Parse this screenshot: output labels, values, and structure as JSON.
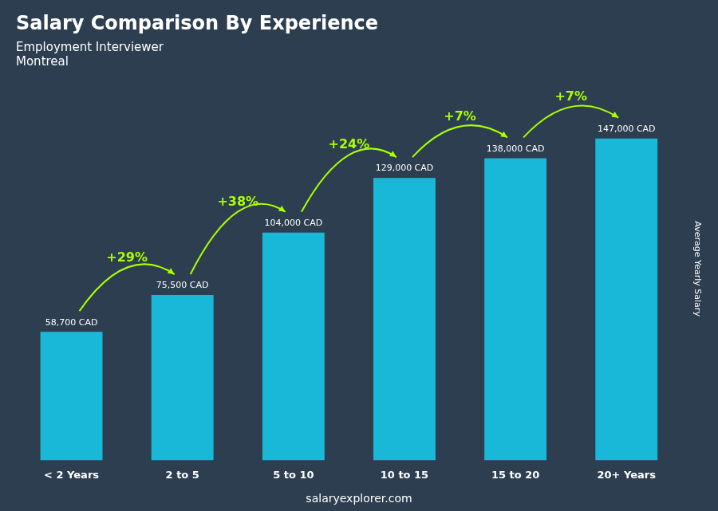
{
  "chart_data": {
    "type": "bar",
    "title": "Salary Comparison By Experience",
    "subtitle": [
      "Employment Interviewer",
      "Montreal"
    ],
    "categories": [
      "< 2 Years",
      "2 to 5",
      "5 to 10",
      "10 to 15",
      "15 to 20",
      "20+ Years"
    ],
    "values": [
      58700,
      75500,
      104000,
      129000,
      138000,
      147000
    ],
    "value_labels": [
      "58,700 CAD",
      "75,500 CAD",
      "104,000 CAD",
      "129,000 CAD",
      "138,000 CAD",
      "147,000 CAD"
    ],
    "data_labels": true,
    "color": "#1ab8d8",
    "annotations": [
      {
        "text": "+29%",
        "color": "#aaff00"
      },
      {
        "text": "+38%",
        "color": "#aaff00"
      },
      {
        "text": "+24%",
        "color": "#aaff00"
      },
      {
        "text": "+7%",
        "color": "#aaff00"
      },
      {
        "text": "+7%",
        "color": "#aaff00"
      }
    ],
    "ylabel": "Average Yearly Salary",
    "footer": "salaryexplorer.com",
    "ylim": [
      0,
      175000
    ],
    "tick_labels": "x",
    "grid": false
  }
}
